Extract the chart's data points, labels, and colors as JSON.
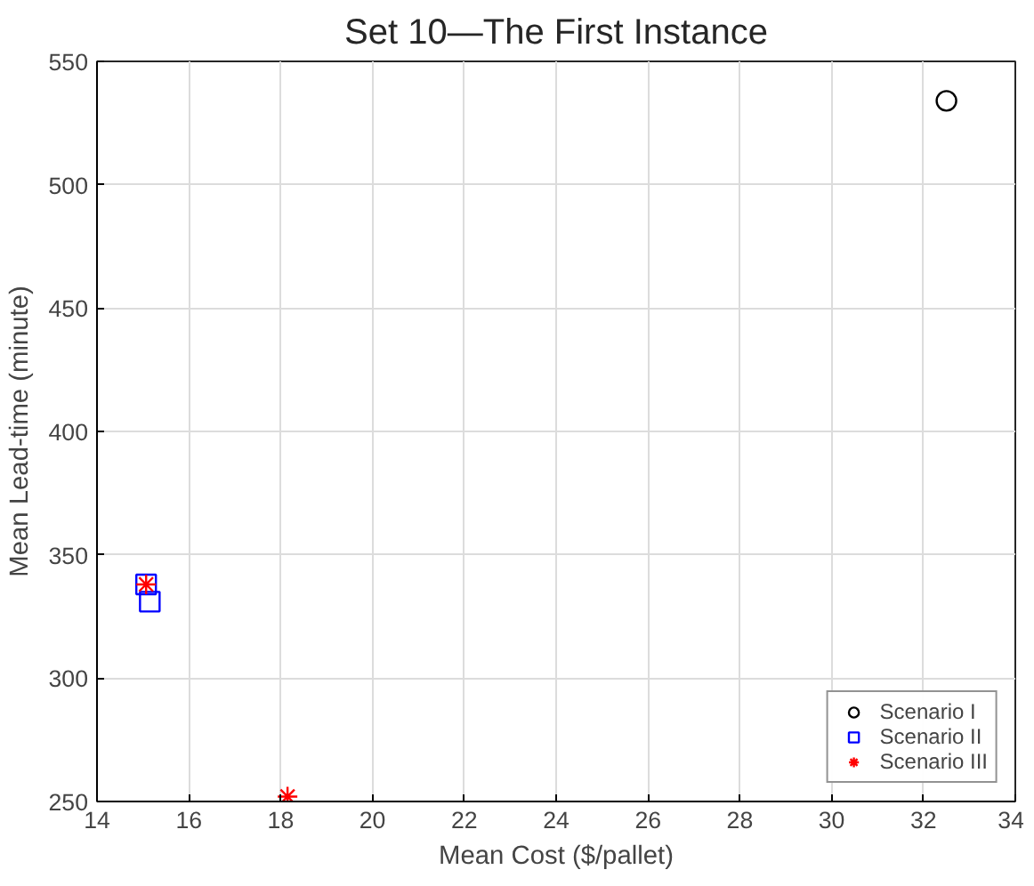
{
  "chart_data": {
    "type": "scatter",
    "title": "Set 10—The First Instance",
    "xlabel": "Mean Cost ($/pallet)",
    "ylabel": "Mean Lead-time (minute)",
    "xlim": [
      14,
      34
    ],
    "xticks": [
      14,
      16,
      18,
      20,
      22,
      24,
      26,
      28,
      30,
      32,
      34
    ],
    "ylim": [
      250,
      550
    ],
    "yticks": [
      250,
      300,
      350,
      400,
      450,
      500,
      550
    ],
    "grid": true,
    "legend": "bottom right",
    "series": [
      {
        "name": "Scenario I",
        "color": "#000000",
        "marker": "circle",
        "x": [
          32.5
        ],
        "values": [
          534
        ]
      },
      {
        "name": "Scenario II",
        "color": "#0000ff",
        "marker": "square",
        "x": [
          15.07,
          15.15
        ],
        "values": [
          338,
          331
        ]
      },
      {
        "name": "Scenario III",
        "color": "#ff0000",
        "marker": "cross",
        "x": [
          15.07,
          18.15
        ],
        "values": [
          338,
          252
        ]
      }
    ]
  }
}
